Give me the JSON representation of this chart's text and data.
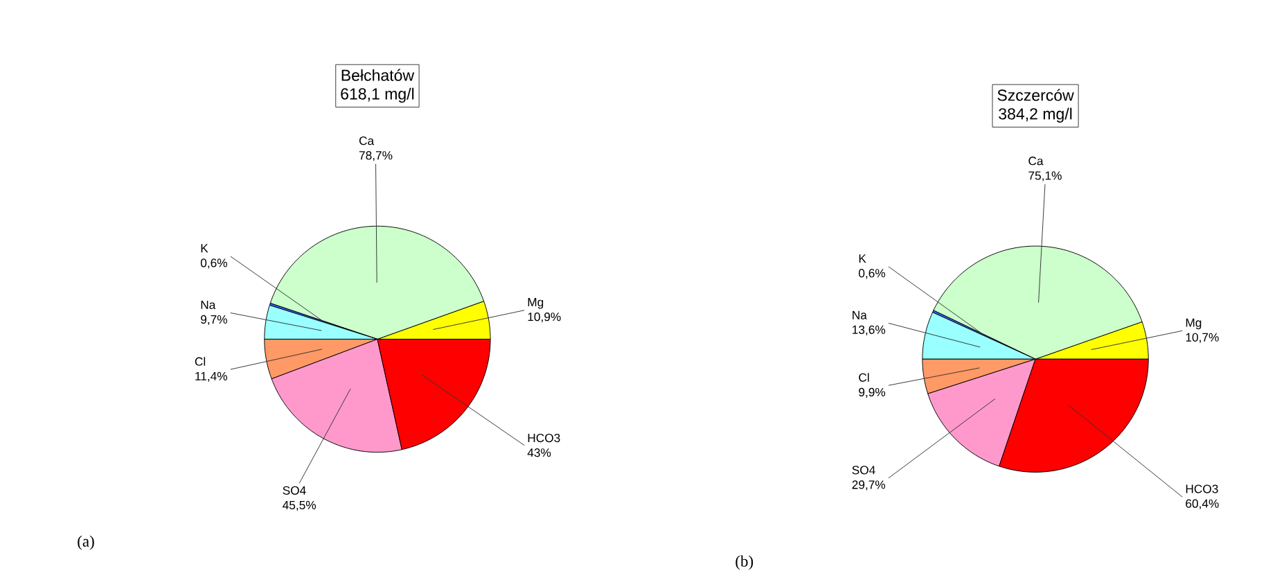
{
  "chart_data": [
    {
      "type": "pie",
      "title": "Bełchatów",
      "subtitle": "618,1 mg/l",
      "categories": [
        "Mg",
        "Ca",
        "K",
        "Na",
        "Cl",
        "SO4",
        "HCO3"
      ],
      "values": [
        10.9,
        78.7,
        0.6,
        9.7,
        11.4,
        45.5,
        43
      ],
      "colors": [
        "#ffff00",
        "#ccffcc",
        "#3366ff",
        "#99ffff",
        "#ff9966",
        "#ff99cc",
        "#ff0000"
      ],
      "value_labels": [
        "10,9%",
        "78,7%",
        "0,6%",
        "9,7%",
        "11,4%",
        "45,5%",
        "43%"
      ],
      "annotations": [
        "(a)"
      ]
    },
    {
      "type": "pie",
      "title": "Szczerców",
      "subtitle": "384,2 mg/l",
      "categories": [
        "Mg",
        "Ca",
        "K",
        "Na",
        "Cl",
        "SO4",
        "HCO3"
      ],
      "values": [
        10.7,
        75.1,
        0.6,
        13.6,
        9.9,
        29.7,
        60.4
      ],
      "colors": [
        "#ffff00",
        "#ccffcc",
        "#3366ff",
        "#99ffff",
        "#ff9966",
        "#ff99cc",
        "#ff0000"
      ],
      "value_labels": [
        "10,7%",
        "75,1%",
        "0,6%",
        "13,6%",
        "9,9%",
        "29,7%",
        "60,4%"
      ],
      "annotations": [
        "(b)"
      ]
    }
  ]
}
